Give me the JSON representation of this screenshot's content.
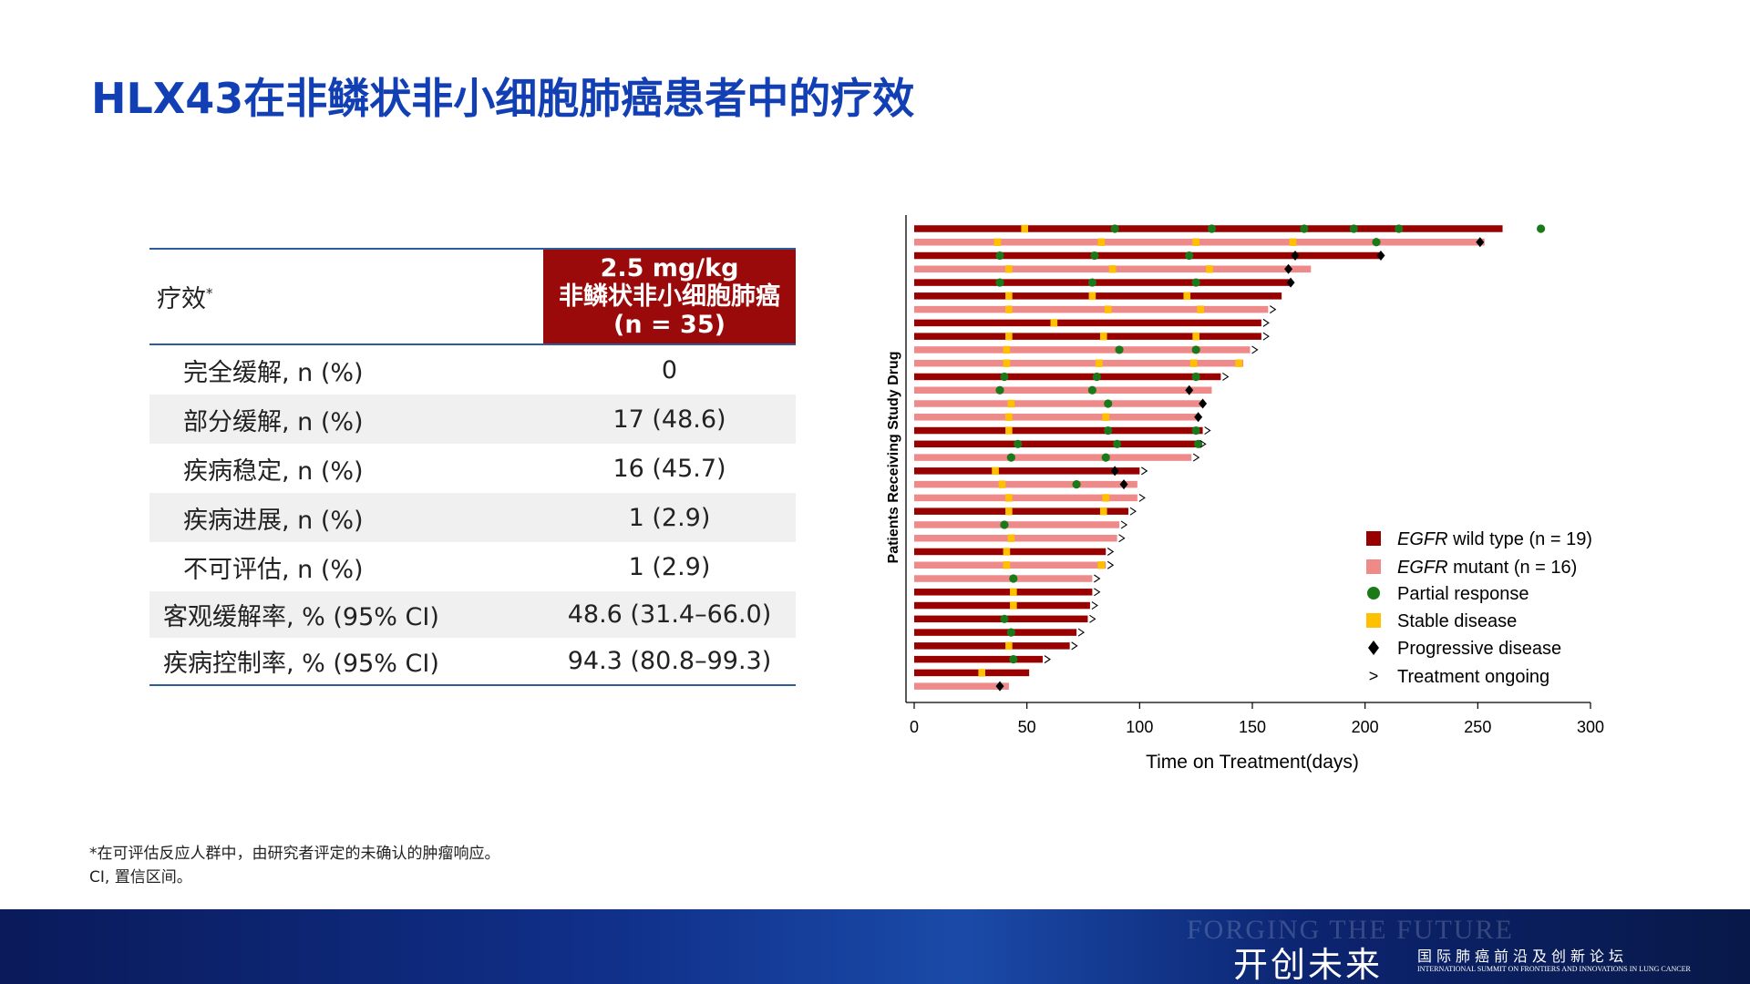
{
  "header": {
    "title": "HLX43在非鳞状非小细胞肺癌患者中的疗效"
  },
  "table": {
    "head": {
      "label": "疗效",
      "label_mark": "*",
      "dose": "2.5 mg/kg",
      "population": "非鳞状非小细胞肺癌",
      "n": "(n = 35)"
    },
    "rows": [
      [
        "完全缓解, n (%)",
        "0"
      ],
      [
        "部分缓解, n (%)",
        "17 (48.6)"
      ],
      [
        "疾病稳定, n (%)",
        "16 (45.7)"
      ],
      [
        "疾病进展, n (%)",
        "1 (2.9)"
      ],
      [
        "不可评估, n (%)",
        "1 (2.9)"
      ],
      [
        "客观缓解率, % (95% CI)",
        "48.6 (31.4–66.0)"
      ],
      [
        "疾病控制率, % (95% CI)",
        "94.3 (80.8–99.3)"
      ]
    ]
  },
  "footnotes": [
    "*在可评估反应人群中，由研究者评定的未确认的肿瘤响应。",
    "CI, 置信区间。"
  ],
  "banner": {
    "watermark": "FORGING THE FUTURE",
    "slogan": "开创未来",
    "forum_cn": "国际肺癌前沿及创新论坛",
    "forum_en": "INTERNATIONAL SUMMIT ON FRONTIERS AND INNOVATIONS IN LUNG CANCER"
  },
  "chart_data": {
    "type": "swimmer",
    "xlabel": "Time on Treatment(days)",
    "ylabel": "Patients Receiving Study Drug",
    "xlim": [
      0,
      300
    ],
    "xticks": [
      0,
      50,
      100,
      150,
      200,
      250,
      300
    ],
    "legend": {
      "wild_type": {
        "italic": "EGFR",
        "label": " wild type (n = 19)",
        "color": "#990000"
      },
      "mutant": {
        "italic": "EGFR",
        "label": " mutant (n = 16)",
        "color": "#ef8a8a"
      },
      "partial_response": {
        "label": "Partial response",
        "color": "#1a7a1a"
      },
      "stable_disease": {
        "label": "Stable disease",
        "color": "#ffc000"
      },
      "progressive_disease": {
        "label": "Progressive disease",
        "color": "#000000"
      },
      "treatment_ongoing": {
        "symbol": ">",
        "label": "Treatment ongoing"
      }
    },
    "patients": [
      {
        "mutant": false,
        "duration": 261,
        "pr": [
          89,
          132,
          173,
          195,
          215,
          278
        ],
        "sd": [
          49
        ],
        "pd": [],
        "ongoing": false
      },
      {
        "mutant": true,
        "duration": 253,
        "pr": [
          205
        ],
        "sd": [
          37,
          83,
          125,
          168
        ],
        "pd": [
          251
        ],
        "ongoing": false
      },
      {
        "mutant": false,
        "duration": 207,
        "pr": [
          38,
          80,
          122
        ],
        "sd": [],
        "pd": [
          169,
          207
        ],
        "ongoing": false
      },
      {
        "mutant": true,
        "duration": 176,
        "pr": [],
        "sd": [
          42,
          88,
          131
        ],
        "pd": [
          166
        ],
        "ongoing": false
      },
      {
        "mutant": false,
        "duration": 167,
        "pr": [
          38,
          79,
          125
        ],
        "sd": [],
        "pd": [
          167
        ],
        "ongoing": false
      },
      {
        "mutant": false,
        "duration": 163,
        "pr": [],
        "sd": [
          42,
          79,
          121
        ],
        "pd": [],
        "ongoing": false
      },
      {
        "mutant": true,
        "duration": 157,
        "pr": [],
        "sd": [
          42,
          86,
          127
        ],
        "pd": [],
        "ongoing": true
      },
      {
        "mutant": false,
        "duration": 154,
        "pr": [],
        "sd": [
          62
        ],
        "pd": [],
        "ongoing": true
      },
      {
        "mutant": false,
        "duration": 154,
        "pr": [],
        "sd": [
          42,
          84,
          125
        ],
        "pd": [],
        "ongoing": true
      },
      {
        "mutant": true,
        "duration": 149,
        "pr": [
          91,
          125
        ],
        "sd": [
          41
        ],
        "pd": [],
        "ongoing": true
      },
      {
        "mutant": true,
        "duration": 146,
        "pr": [],
        "sd": [
          41,
          82,
          124,
          144
        ],
        "pd": [],
        "ongoing": false
      },
      {
        "mutant": false,
        "duration": 136,
        "pr": [
          40,
          81,
          125
        ],
        "sd": [],
        "pd": [],
        "ongoing": true
      },
      {
        "mutant": true,
        "duration": 132,
        "pr": [
          38,
          79
        ],
        "sd": [],
        "pd": [
          122
        ],
        "ongoing": false
      },
      {
        "mutant": true,
        "duration": 128,
        "pr": [
          86
        ],
        "sd": [
          43
        ],
        "pd": [
          128
        ],
        "ongoing": false
      },
      {
        "mutant": true,
        "duration": 126,
        "pr": [],
        "sd": [
          42,
          85
        ],
        "pd": [
          126
        ],
        "ongoing": false
      },
      {
        "mutant": false,
        "duration": 128,
        "pr": [
          86,
          125
        ],
        "sd": [
          42
        ],
        "pd": [],
        "ongoing": true
      },
      {
        "mutant": false,
        "duration": 126,
        "pr": [
          46,
          90,
          126
        ],
        "sd": [],
        "pd": [],
        "ongoing": true
      },
      {
        "mutant": true,
        "duration": 123,
        "pr": [
          43,
          85
        ],
        "sd": [],
        "pd": [],
        "ongoing": true
      },
      {
        "mutant": false,
        "duration": 100,
        "pr": [],
        "sd": [
          36
        ],
        "pd": [
          89
        ],
        "ongoing": true
      },
      {
        "mutant": true,
        "duration": 99,
        "pr": [
          72
        ],
        "sd": [
          39
        ],
        "pd": [
          93
        ],
        "ongoing": false
      },
      {
        "mutant": true,
        "duration": 99,
        "pr": [],
        "sd": [
          42,
          85
        ],
        "pd": [],
        "ongoing": true
      },
      {
        "mutant": false,
        "duration": 95,
        "pr": [],
        "sd": [
          42,
          84
        ],
        "pd": [],
        "ongoing": true
      },
      {
        "mutant": true,
        "duration": 91,
        "pr": [
          40
        ],
        "sd": [],
        "pd": [],
        "ongoing": true
      },
      {
        "mutant": true,
        "duration": 90,
        "pr": [],
        "sd": [
          43
        ],
        "pd": [],
        "ongoing": true
      },
      {
        "mutant": false,
        "duration": 85,
        "pr": [],
        "sd": [
          41
        ],
        "pd": [],
        "ongoing": true
      },
      {
        "mutant": true,
        "duration": 85,
        "pr": [],
        "sd": [
          41,
          83
        ],
        "pd": [],
        "ongoing": true
      },
      {
        "mutant": true,
        "duration": 79,
        "pr": [
          44
        ],
        "sd": [],
        "pd": [],
        "ongoing": true
      },
      {
        "mutant": false,
        "duration": 79,
        "pr": [],
        "sd": [
          44
        ],
        "pd": [],
        "ongoing": true
      },
      {
        "mutant": false,
        "duration": 78,
        "pr": [],
        "sd": [
          44
        ],
        "pd": [],
        "ongoing": true
      },
      {
        "mutant": false,
        "duration": 77,
        "pr": [
          40
        ],
        "sd": [],
        "pd": [],
        "ongoing": true
      },
      {
        "mutant": false,
        "duration": 72,
        "pr": [
          43
        ],
        "sd": [],
        "pd": [],
        "ongoing": true
      },
      {
        "mutant": false,
        "duration": 69,
        "pr": [],
        "sd": [
          42
        ],
        "pd": [],
        "ongoing": true
      },
      {
        "mutant": false,
        "duration": 57,
        "pr": [
          44
        ],
        "sd": [],
        "pd": [],
        "ongoing": true
      },
      {
        "mutant": false,
        "duration": 51,
        "pr": [],
        "sd": [
          30
        ],
        "pd": [],
        "ongoing": false
      },
      {
        "mutant": true,
        "duration": 42,
        "pr": [],
        "sd": [],
        "pd": [
          38
        ],
        "ongoing": false
      }
    ]
  }
}
